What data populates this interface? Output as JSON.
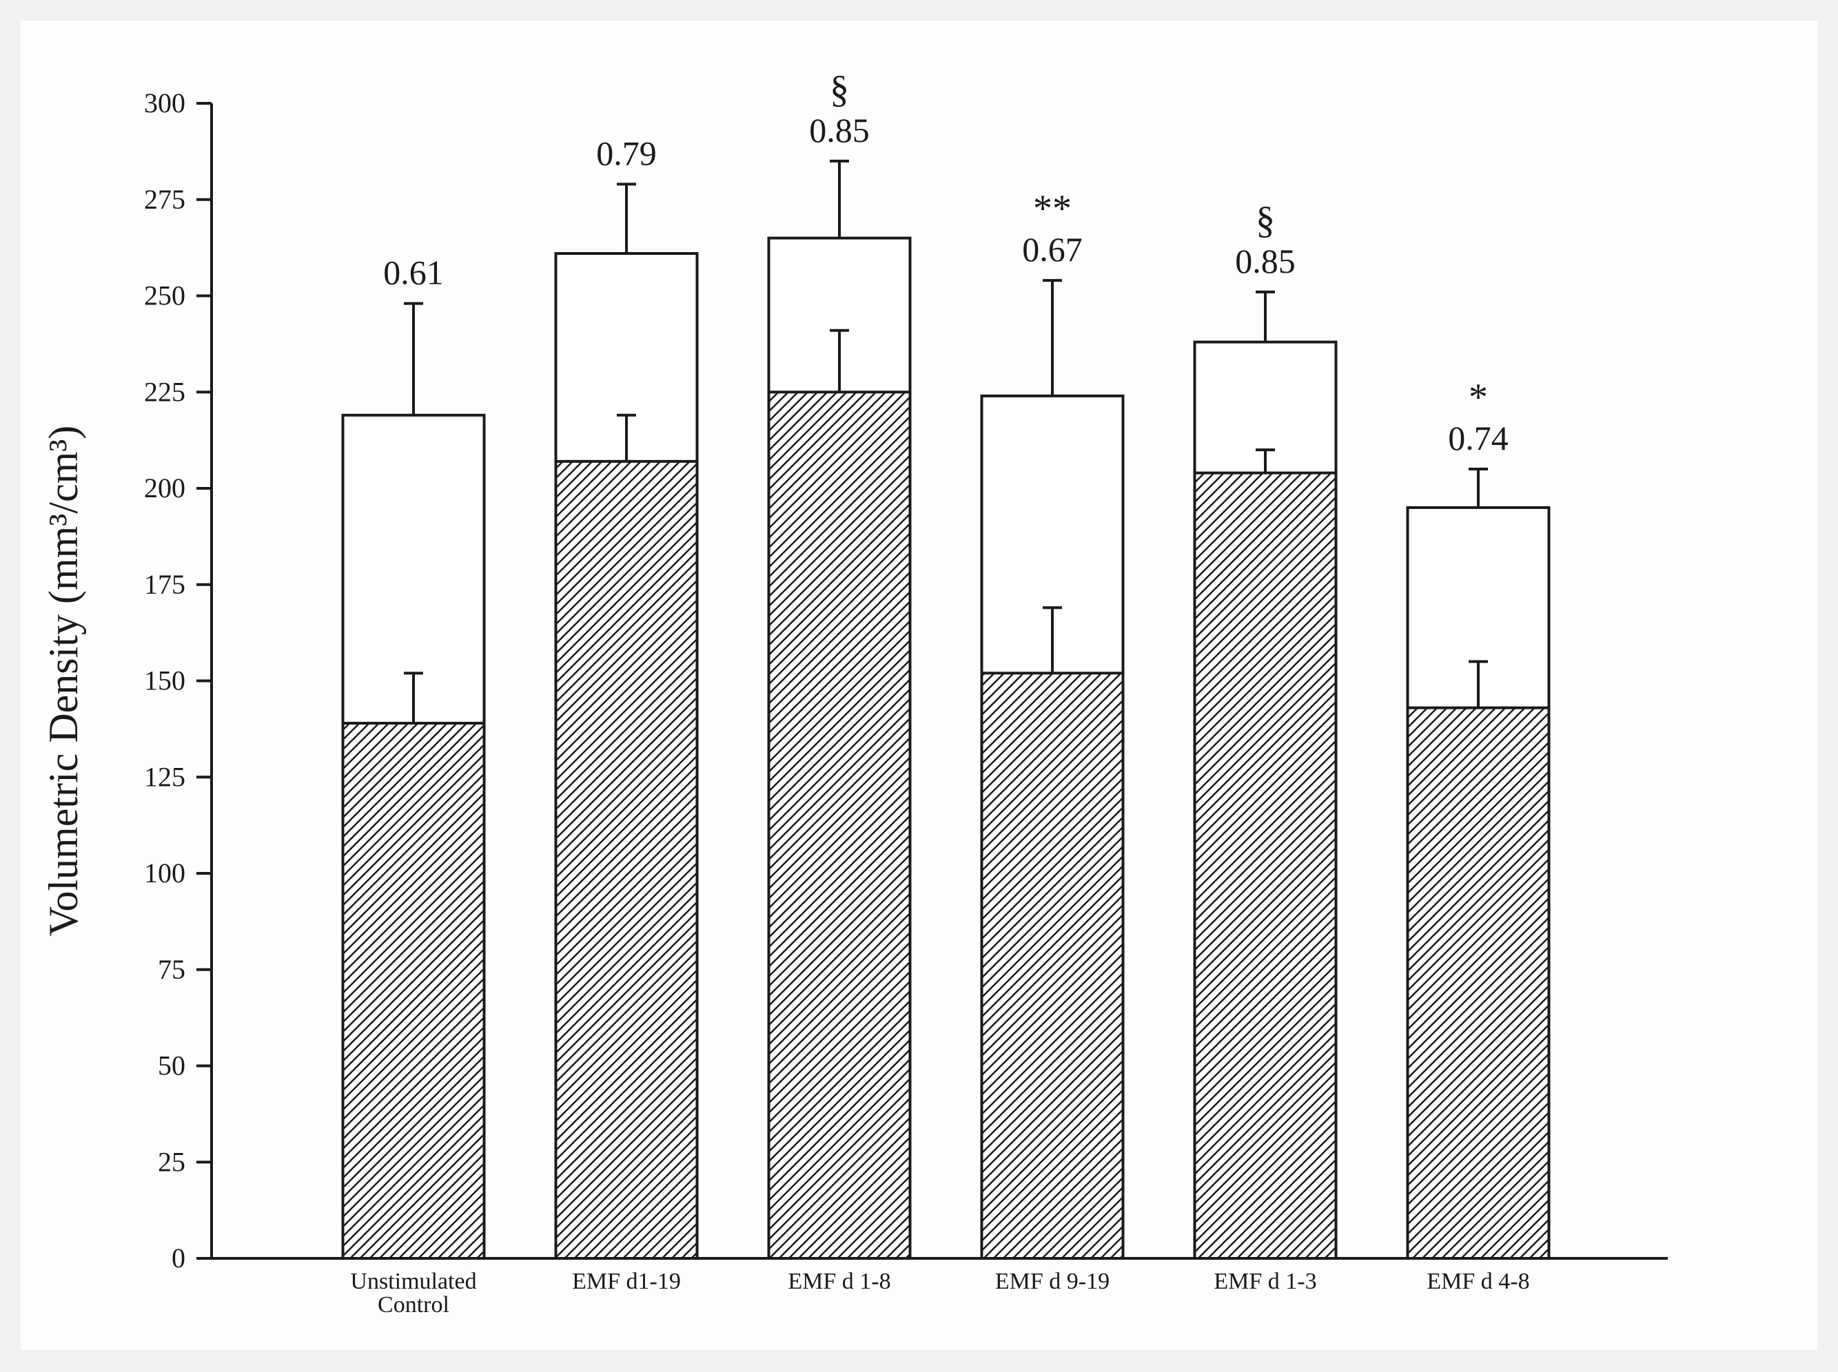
{
  "chart_data": {
    "type": "bar",
    "title": "",
    "xlabel": "",
    "ylabel": "Volumetric Density (mm³/cm³)",
    "ylim": [
      0,
      300
    ],
    "yticks": [
      "0",
      "25",
      "50",
      "75",
      "100",
      "125",
      "150",
      "175",
      "200",
      "225",
      "250",
      "275",
      "300"
    ],
    "grid": false,
    "legend": "none",
    "categories": [
      [
        "Unstimulated",
        "Control"
      ],
      [
        "EMF d1-19"
      ],
      [
        "EMF d 1-8"
      ],
      [
        "EMF d 9-19"
      ],
      [
        "EMF d 1-3"
      ],
      [
        "EMF d 4-8"
      ]
    ],
    "series": [
      {
        "pattern": "open",
        "values": [
          219,
          261,
          265,
          224,
          238,
          195
        ],
        "error_upper": [
          248,
          279,
          285,
          254,
          251,
          205
        ]
      },
      {
        "pattern": "hatched",
        "values": [
          139,
          207,
          225,
          152,
          204,
          143
        ],
        "error_upper": [
          152,
          219,
          241,
          169,
          210,
          155
        ]
      }
    ],
    "annotations": [
      "0.61",
      "0.79",
      "0.85",
      "0.67",
      "0.85",
      "0.74"
    ],
    "significance": [
      "",
      "",
      "§",
      "**",
      "§",
      "*"
    ],
    "colors": {
      "open": "#ffffff",
      "hatch_line": "#1a1a1a",
      "axis": "#1a1a1a"
    }
  }
}
